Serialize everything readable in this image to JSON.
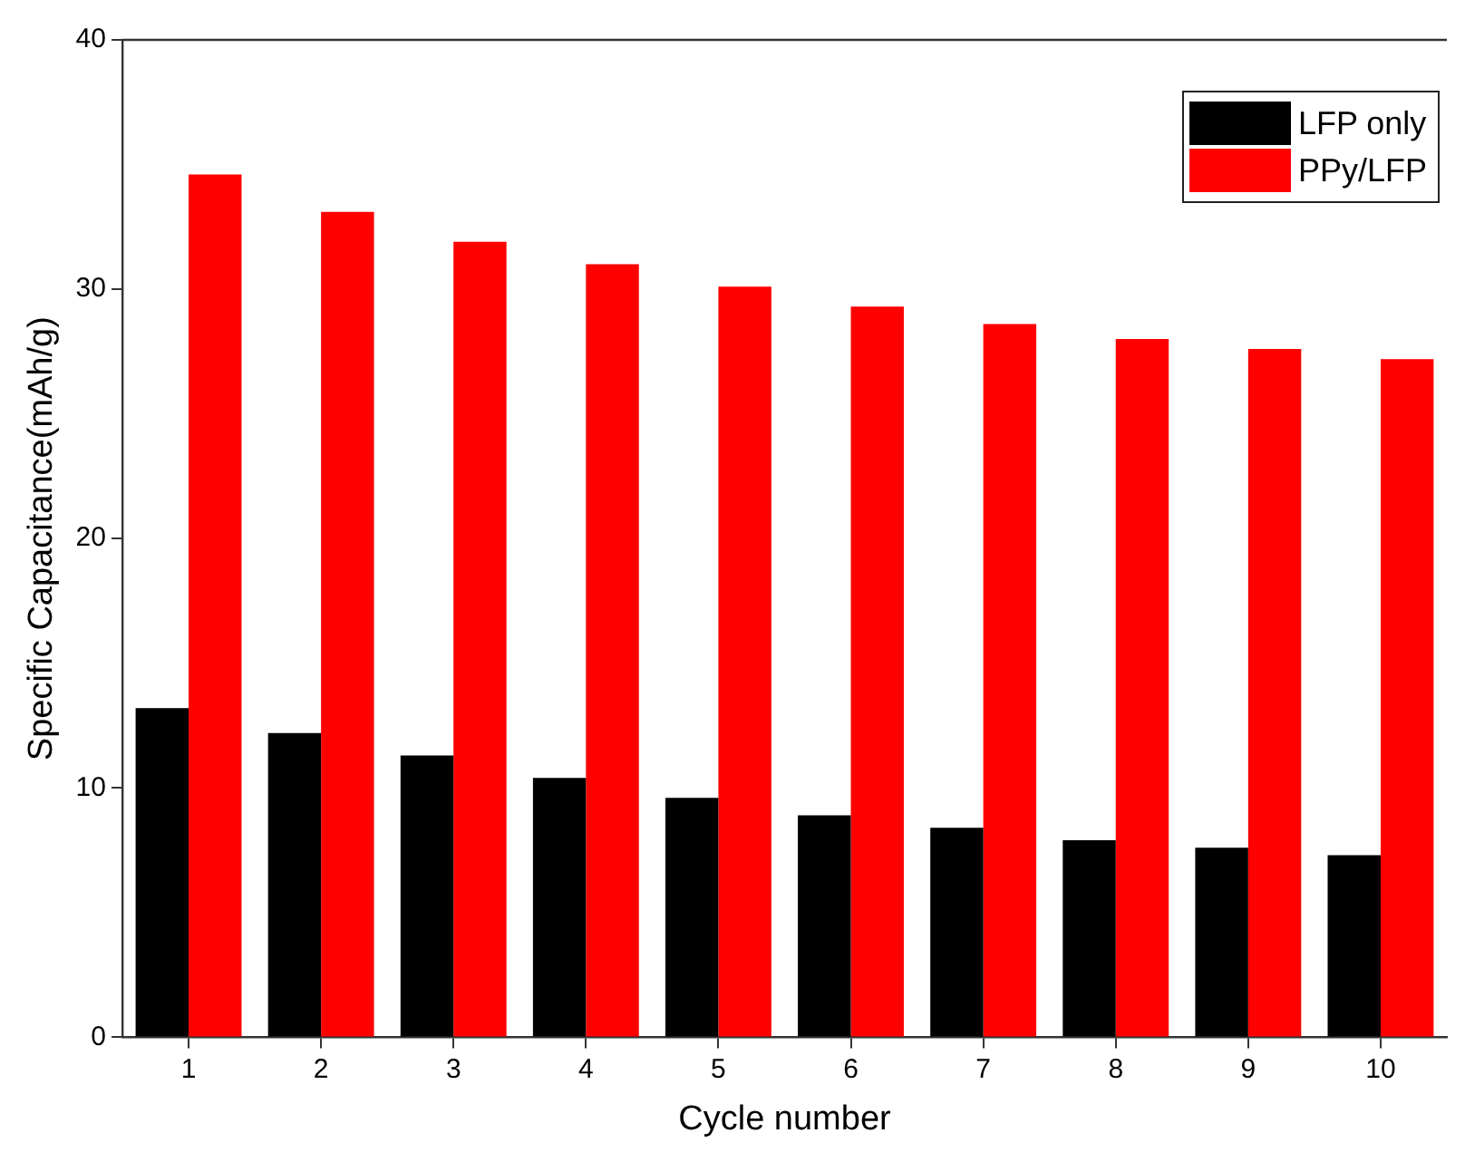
{
  "chart_data": {
    "type": "bar",
    "xlabel": "Cycle number",
    "ylabel": "Specific Capacitance(mAh/g)",
    "categories": [
      "1",
      "2",
      "3",
      "4",
      "5",
      "6",
      "7",
      "8",
      "9",
      "10"
    ],
    "series": [
      {
        "name": "LFP only",
        "color": "#000000",
        "values": [
          13.2,
          12.2,
          11.3,
          10.4,
          9.6,
          8.9,
          8.4,
          7.9,
          7.6,
          7.3
        ]
      },
      {
        "name": "PPy/LFP",
        "color": "#ff0000",
        "values": [
          34.6,
          33.1,
          31.9,
          31.0,
          30.1,
          29.3,
          28.6,
          28.0,
          27.6,
          27.2
        ]
      }
    ],
    "ylim": [
      0,
      40
    ],
    "yticks": [
      0,
      10,
      20,
      30,
      40
    ],
    "grid": false,
    "legend": "top right"
  }
}
